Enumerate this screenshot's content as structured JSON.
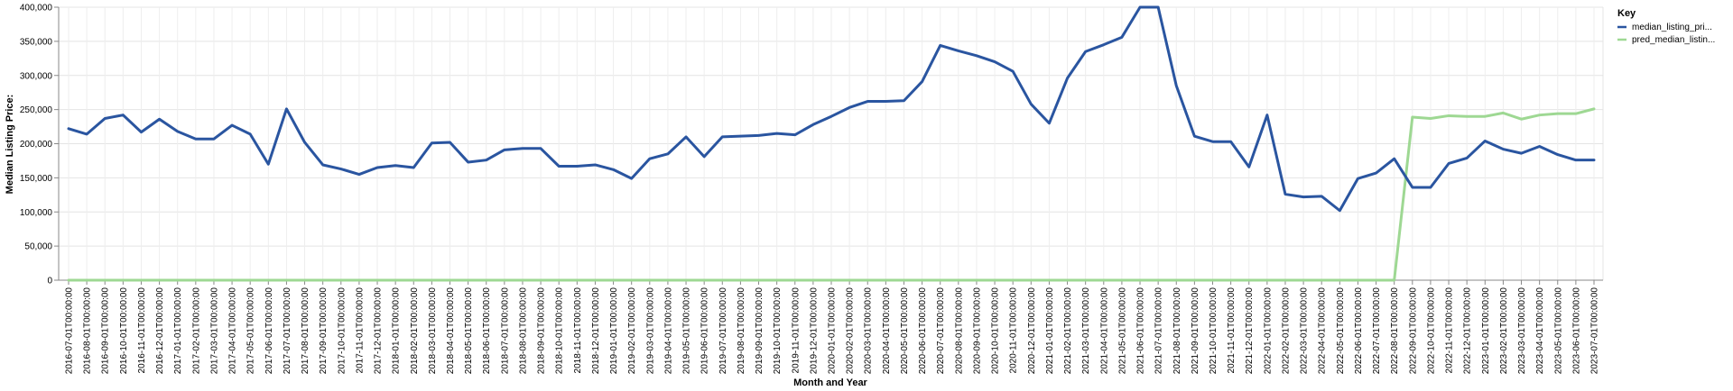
{
  "chart_data": {
    "type": "line",
    "xlabel": "Month and Year",
    "ylabel": "Median Listing Price:",
    "ylim": [
      0,
      400000
    ],
    "yticks": [
      "0",
      "50,000",
      "100,000",
      "150,000",
      "200,000",
      "250,000",
      "300,000",
      "350,000",
      "400,000"
    ],
    "grid": true,
    "legend": {
      "title": "Key",
      "position": "top-right"
    },
    "x": [
      "2016-07-01T00:00:00",
      "2016-08-01T00:00:00",
      "2016-09-01T00:00:00",
      "2016-10-01T00:00:00",
      "2016-11-01T00:00:00",
      "2016-12-01T00:00:00",
      "2017-01-01T00:00:00",
      "2017-02-01T00:00:00",
      "2017-03-01T00:00:00",
      "2017-04-01T00:00:00",
      "2017-05-01T00:00:00",
      "2017-06-01T00:00:00",
      "2017-07-01T00:00:00",
      "2017-08-01T00:00:00",
      "2017-09-01T00:00:00",
      "2017-10-01T00:00:00",
      "2017-11-01T00:00:00",
      "2017-12-01T00:00:00",
      "2018-01-01T00:00:00",
      "2018-02-01T00:00:00",
      "2018-03-01T00:00:00",
      "2018-04-01T00:00:00",
      "2018-05-01T00:00:00",
      "2018-06-01T00:00:00",
      "2018-07-01T00:00:00",
      "2018-08-01T00:00:00",
      "2018-09-01T00:00:00",
      "2018-10-01T00:00:00",
      "2018-11-01T00:00:00",
      "2018-12-01T00:00:00",
      "2019-01-01T00:00:00",
      "2019-02-01T00:00:00",
      "2019-03-01T00:00:00",
      "2019-04-01T00:00:00",
      "2019-05-01T00:00:00",
      "2019-06-01T00:00:00",
      "2019-07-01T00:00:00",
      "2019-08-01T00:00:00",
      "2019-09-01T00:00:00",
      "2019-10-01T00:00:00",
      "2019-11-01T00:00:00",
      "2019-12-01T00:00:00",
      "2020-01-01T00:00:00",
      "2020-02-01T00:00:00",
      "2020-03-01T00:00:00",
      "2020-04-01T00:00:00",
      "2020-05-01T00:00:00",
      "2020-06-01T00:00:00",
      "2020-07-01T00:00:00",
      "2020-08-01T00:00:00",
      "2020-09-01T00:00:00",
      "2020-10-01T00:00:00",
      "2020-11-01T00:00:00",
      "2020-12-01T00:00:00",
      "2021-01-01T00:00:00",
      "2021-02-01T00:00:00",
      "2021-03-01T00:00:00",
      "2021-04-01T00:00:00",
      "2021-05-01T00:00:00",
      "2021-06-01T00:00:00",
      "2021-07-01T00:00:00",
      "2021-08-01T00:00:00",
      "2021-09-01T00:00:00",
      "2021-10-01T00:00:00",
      "2021-11-01T00:00:00",
      "2021-12-01T00:00:00",
      "2022-01-01T00:00:00",
      "2022-02-01T00:00:00",
      "2022-03-01T00:00:00",
      "2022-04-01T00:00:00",
      "2022-05-01T00:00:00",
      "2022-06-01T00:00:00",
      "2022-07-01T00:00:00",
      "2022-08-01T00:00:00",
      "2022-09-01T00:00:00",
      "2022-10-01T00:00:00",
      "2022-11-01T00:00:00",
      "2022-12-01T00:00:00",
      "2023-01-01T00:00:00",
      "2023-02-01T00:00:00",
      "2023-03-01T00:00:00",
      "2023-04-01T00:00:00",
      "2023-05-01T00:00:00",
      "2023-06-01T00:00:00",
      "2023-07-01T00:00:00"
    ],
    "series": [
      {
        "name": "median_listing_pri...",
        "color": "#2a55a0",
        "values": [
          222000,
          214000,
          237000,
          242000,
          217000,
          236000,
          218000,
          207000,
          207000,
          227000,
          214000,
          170000,
          251000,
          202000,
          169000,
          163000,
          155000,
          165000,
          168000,
          165000,
          201000,
          202000,
          173000,
          176000,
          191000,
          193000,
          193000,
          167000,
          167000,
          169000,
          162000,
          149000,
          178000,
          185000,
          210000,
          181000,
          210000,
          211000,
          212000,
          215000,
          213000,
          228000,
          240000,
          253000,
          262000,
          262000,
          263000,
          291000,
          344000,
          336000,
          329000,
          320000,
          306000,
          258000,
          230000,
          296000,
          335000,
          345000,
          356000,
          400000,
          400000,
          285000,
          211000,
          203000,
          203000,
          166000,
          242000,
          126000,
          122000,
          123000,
          102000,
          149000,
          157000,
          178000,
          136000,
          136000,
          171000,
          179000,
          204000,
          192000,
          186000,
          196000,
          184000,
          176000,
          176000
        ]
      },
      {
        "name": "pred_median_listin...",
        "color": "#9ed893",
        "values": [
          0,
          0,
          0,
          0,
          0,
          0,
          0,
          0,
          0,
          0,
          0,
          0,
          0,
          0,
          0,
          0,
          0,
          0,
          0,
          0,
          0,
          0,
          0,
          0,
          0,
          0,
          0,
          0,
          0,
          0,
          0,
          0,
          0,
          0,
          0,
          0,
          0,
          0,
          0,
          0,
          0,
          0,
          0,
          0,
          0,
          0,
          0,
          0,
          0,
          0,
          0,
          0,
          0,
          0,
          0,
          0,
          0,
          0,
          0,
          0,
          0,
          0,
          0,
          0,
          0,
          0,
          0,
          0,
          0,
          0,
          0,
          0,
          0,
          0,
          239000,
          237000,
          241000,
          240000,
          240000,
          245000,
          236000,
          242000,
          244000,
          244000,
          251000
        ]
      }
    ]
  }
}
